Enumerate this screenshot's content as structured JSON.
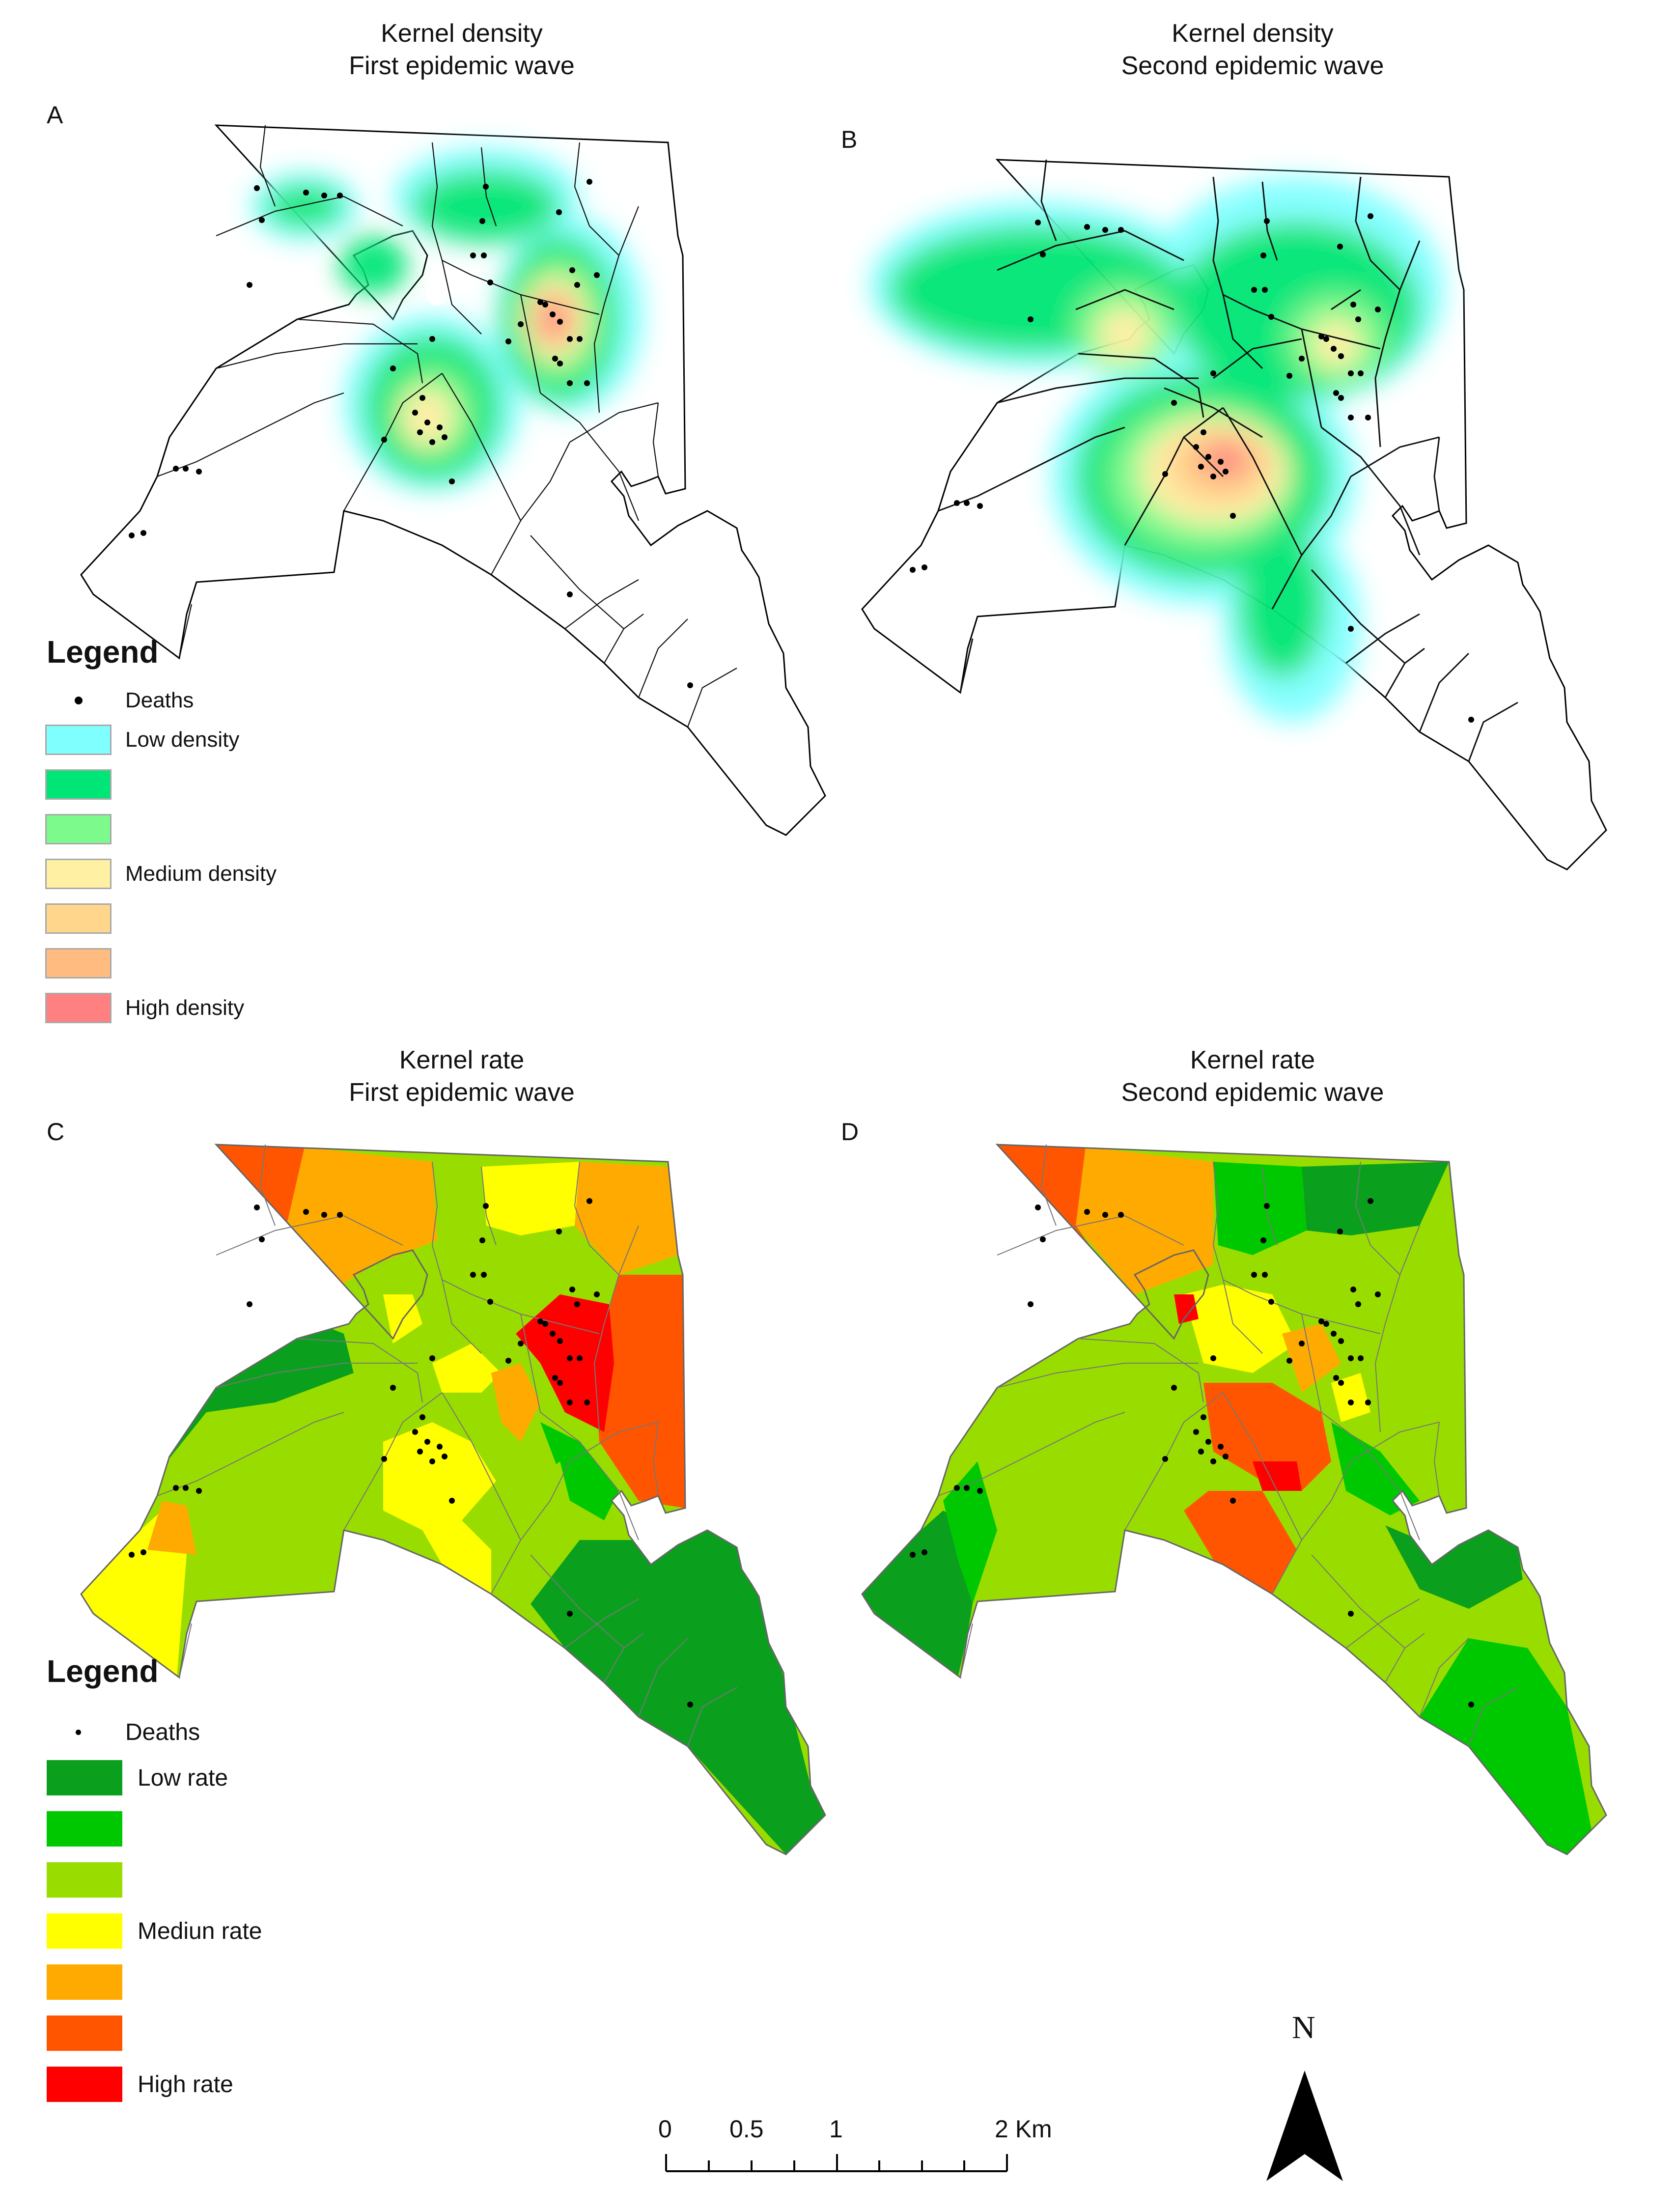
{
  "panels": [
    {
      "letter": "A",
      "title_line1": "Kernel density",
      "title_line2": "First epidemic wave"
    },
    {
      "letter": "B",
      "title_line1": "Kernel density",
      "title_line2": "Second epidemic wave"
    },
    {
      "letter": "C",
      "title_line1": "Kernel rate",
      "title_line2": "First epidemic wave"
    },
    {
      "letter": "D",
      "title_line1": "Kernel rate",
      "title_line2": "Second epidemic wave"
    }
  ],
  "density_legend": {
    "title": "Legend",
    "deaths_label": "Deaths",
    "classes": [
      {
        "label": "Low density",
        "color": "#80ffff"
      },
      {
        "label": "",
        "color": "#00e676"
      },
      {
        "label": "",
        "color": "#7dfa8c"
      },
      {
        "label": "Medium density",
        "color": "#fff0a3"
      },
      {
        "label": "",
        "color": "#ffd68c"
      },
      {
        "label": "",
        "color": "#ffbb80"
      },
      {
        "label": "High density",
        "color": "#ff8080"
      }
    ]
  },
  "rate_legend": {
    "title": "Legend",
    "deaths_label": "Deaths",
    "classes": [
      {
        "label": "Low rate",
        "color": "#0aa01e"
      },
      {
        "label": "",
        "color": "#00c800"
      },
      {
        "label": "",
        "color": "#99dd00"
      },
      {
        "label": "Mediun rate",
        "color": "#ffff00"
      },
      {
        "label": "",
        "color": "#ffaa00"
      },
      {
        "label": "",
        "color": "#ff5500"
      },
      {
        "label": "High rate",
        "color": "#ff0000"
      }
    ]
  },
  "scale_bar": {
    "labels": [
      "0",
      "0.5",
      "1",
      "2 Km"
    ]
  },
  "north_arrow": {
    "label": "N",
    "icon": "north-arrow-icon"
  }
}
